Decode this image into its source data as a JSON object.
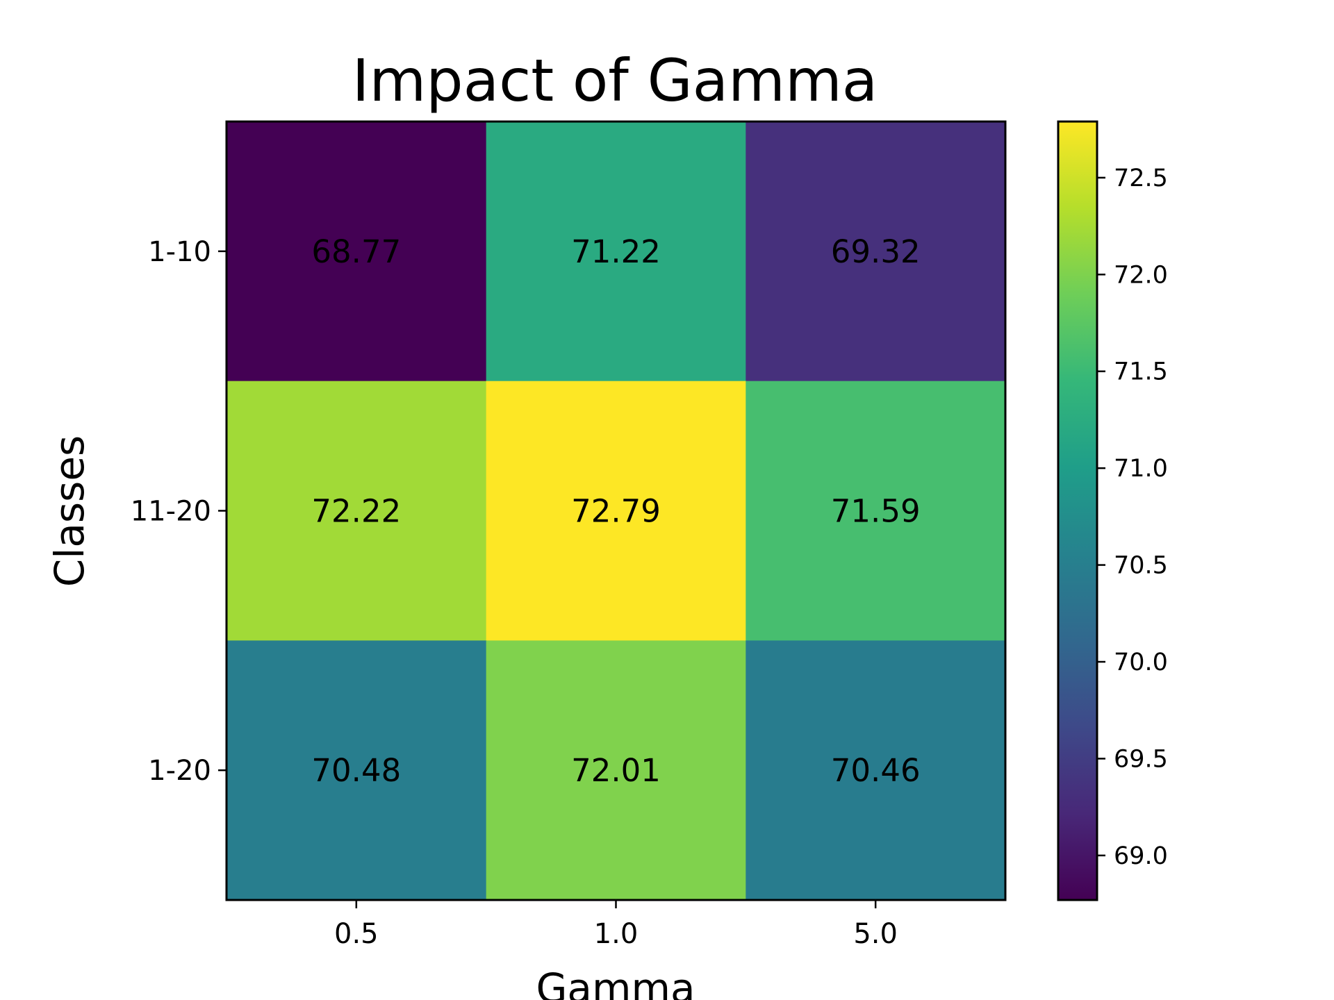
{
  "chart_data": {
    "type": "heatmap",
    "title": "Impact of Gamma",
    "xlabel": "Gamma",
    "ylabel": "Classes",
    "x_categories": [
      "0.5",
      "1.0",
      "5.0"
    ],
    "y_categories": [
      "1-10",
      "11-20",
      "1-20"
    ],
    "values": [
      [
        68.77,
        71.22,
        69.32
      ],
      [
        72.22,
        72.79,
        71.59
      ],
      [
        70.48,
        72.01,
        70.46
      ]
    ],
    "cell_labels": [
      [
        "68.77",
        "71.22",
        "69.32"
      ],
      [
        "72.22",
        "72.79",
        "71.59"
      ],
      [
        "70.48",
        "72.01",
        "70.46"
      ]
    ],
    "colormap": "viridis",
    "colorbar": {
      "range": [
        68.77,
        72.79
      ],
      "ticks": [
        69.0,
        69.5,
        70.0,
        70.5,
        71.0,
        71.5,
        72.0,
        72.5
      ],
      "tick_labels": [
        "69.0",
        "69.5",
        "70.0",
        "70.5",
        "71.0",
        "71.5",
        "72.0",
        "72.5"
      ]
    },
    "grid": false,
    "legend": "none"
  }
}
